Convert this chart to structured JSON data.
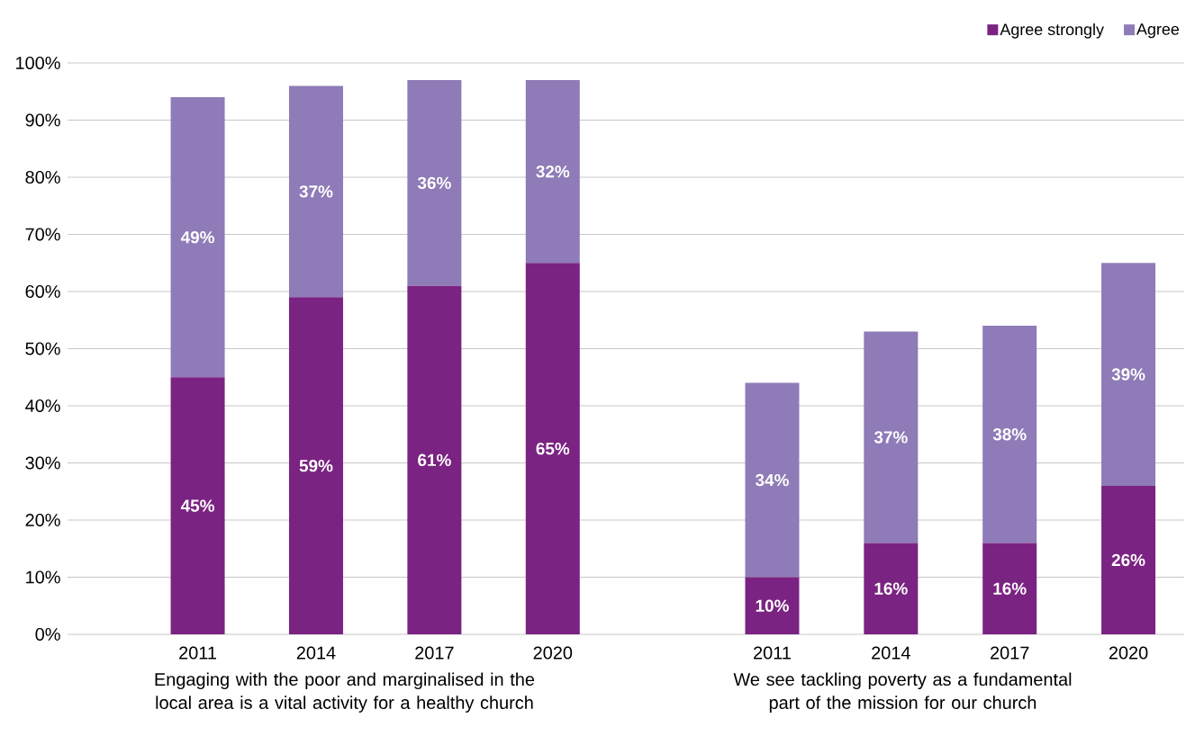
{
  "chart_data": [
    {
      "type": "bar",
      "stacked": true,
      "categories": [
        "2011",
        "2014",
        "2017",
        "2020"
      ],
      "xlabel": "Engaging with the poor and marginalised in the local area is a vital activity for a healthy church",
      "series": [
        {
          "color": "#7a2382",
          "values": [
            45,
            59,
            61,
            65
          ],
          "value_labels": [
            "45%",
            "59%",
            "61%",
            "65%"
          ]
        },
        {
          "color": "#8e7bb7",
          "values": [
            49,
            37,
            36,
            32
          ],
          "value_labels": [
            "49%",
            "37%",
            "36%",
            "32%"
          ]
        }
      ],
      "ylim": [
        0,
        100
      ],
      "yticks": [
        {
          "value": 0,
          "label": "0%"
        },
        {
          "value": 10,
          "label": "10%"
        },
        {
          "value": 20,
          "label": "20%"
        },
        {
          "value": 30,
          "label": "30%"
        },
        {
          "value": 40,
          "label": "40%"
        },
        {
          "value": 50,
          "label": "50%"
        },
        {
          "value": 60,
          "label": "60%"
        },
        {
          "value": 70,
          "label": "70%"
        },
        {
          "value": 80,
          "label": "80%"
        },
        {
          "value": 90,
          "label": "90%"
        },
        {
          "value": 100,
          "label": "100%"
        }
      ],
      "grid": "y",
      "legend": false
    },
    {
      "type": "bar",
      "stacked": true,
      "categories": [
        "2011",
        "2014",
        "2017",
        "2020"
      ],
      "xlabel": "We see tackling poverty as a fundamental part of the mission for our church",
      "series": [
        {
          "name": "Agree strongly",
          "color": "#7a2382",
          "values": [
            10,
            16,
            16,
            26
          ],
          "value_labels": [
            "10%",
            "16%",
            "16%",
            "26%"
          ]
        },
        {
          "name": "Agree",
          "color": "#8e7bb7",
          "values": [
            34,
            37,
            38,
            39
          ],
          "value_labels": [
            "34%",
            "37%",
            "38%",
            "39%"
          ]
        }
      ],
      "ylim": [
        0,
        100
      ],
      "yticks": [
        0,
        10,
        20,
        30,
        40,
        50,
        60,
        70,
        80,
        90,
        100
      ],
      "tick_labels": "x",
      "grid": "y",
      "legend": "top right"
    }
  ]
}
